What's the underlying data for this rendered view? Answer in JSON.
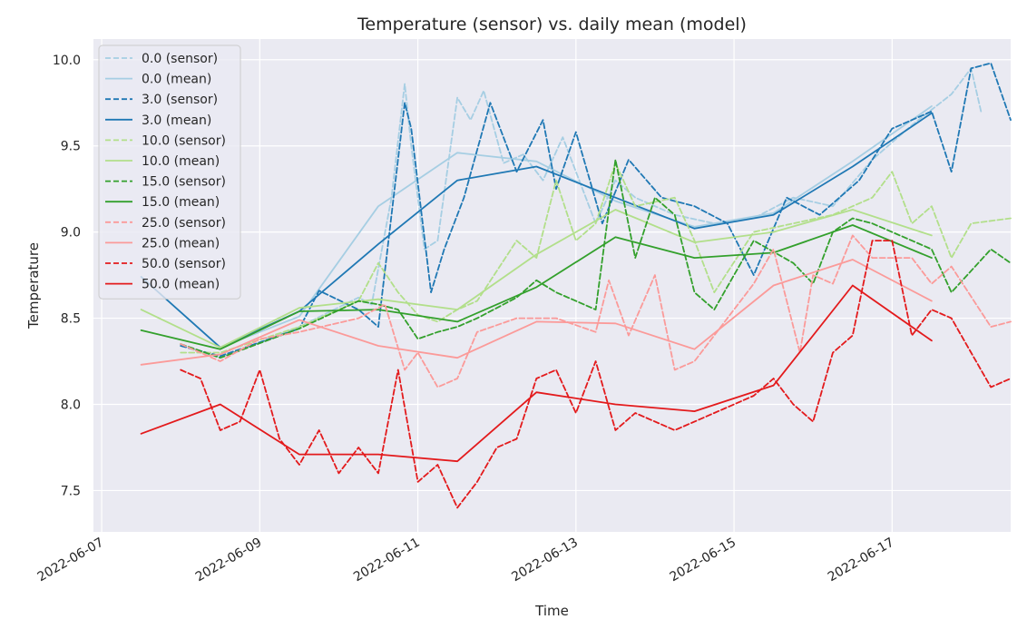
{
  "chart_data": {
    "type": "line",
    "title": "Temperature (sensor) vs. daily mean (model)",
    "xlabel": "Time",
    "ylabel": "Temperature",
    "xlim": [
      "2022-06-06T21:30",
      "2022-06-18T12:00"
    ],
    "ylim": [
      7.26,
      10.12
    ],
    "x_ticks": [
      "2022-06-07",
      "2022-06-09",
      "2022-06-11",
      "2022-06-13",
      "2022-06-15",
      "2022-06-17"
    ],
    "y_ticks": [
      7.5,
      8.0,
      8.5,
      9.0,
      9.5,
      10.0
    ],
    "grid": true,
    "legend_position": "top-left",
    "series": [
      {
        "name": "0.0 (sensor)",
        "color": "#a6cee3",
        "style": "dashed",
        "x": [
          "2022-06-08T00:00",
          "2022-06-08T12:00",
          "2022-06-09T12:00",
          "2022-06-10T06:00",
          "2022-06-10T10:00",
          "2022-06-10T16:00",
          "2022-06-10T20:00",
          "2022-06-10T22:00",
          "2022-06-11T02:00",
          "2022-06-11T06:00",
          "2022-06-11T12:00",
          "2022-06-11T16:00",
          "2022-06-11T20:00",
          "2022-06-12T02:00",
          "2022-06-12T08:00",
          "2022-06-12T14:00",
          "2022-06-12T20:00",
          "2022-06-13T06:00",
          "2022-06-13T12:00",
          "2022-06-13T18:00",
          "2022-06-14T06:00",
          "2022-06-14T18:00",
          "2022-06-15T06:00",
          "2022-06-15T18:00",
          "2022-06-16T06:00",
          "2022-06-16T18:00",
          "2022-06-17T06:00",
          "2022-06-17T18:00",
          "2022-06-18T00:00",
          "2022-06-18T03:00"
        ],
        "y": [
          8.34,
          8.27,
          8.45,
          8.62,
          8.58,
          9.2,
          9.86,
          9.5,
          8.9,
          8.95,
          9.78,
          9.65,
          9.82,
          9.4,
          9.45,
          9.3,
          9.55,
          9.05,
          9.3,
          9.2,
          9.1,
          9.05,
          9.08,
          9.2,
          9.15,
          9.42,
          9.62,
          9.8,
          9.95,
          9.7
        ]
      },
      {
        "name": "0.0 (mean)",
        "color": "#a6cee3",
        "style": "solid",
        "x": [
          "2022-06-07T12:00",
          "2022-06-08T12:00",
          "2022-06-09T12:00",
          "2022-06-10T12:00",
          "2022-06-11T12:00",
          "2022-06-12T12:00",
          "2022-06-13T12:00",
          "2022-06-14T12:00",
          "2022-06-15T12:00",
          "2022-06-16T12:00",
          "2022-06-17T12:00"
        ],
        "y": [
          8.74,
          8.33,
          8.51,
          9.15,
          9.46,
          9.41,
          9.18,
          9.03,
          9.11,
          9.41,
          9.73
        ]
      },
      {
        "name": "3.0 (sensor)",
        "color": "#1f78b4",
        "style": "dashed",
        "x": [
          "2022-06-08T00:00",
          "2022-06-08T12:00",
          "2022-06-09T12:00",
          "2022-06-09T18:00",
          "2022-06-10T06:00",
          "2022-06-10T12:00",
          "2022-06-10T20:00",
          "2022-06-10T22:00",
          "2022-06-11T04:00",
          "2022-06-11T08:00",
          "2022-06-11T14:00",
          "2022-06-11T22:00",
          "2022-06-12T06:00",
          "2022-06-12T14:00",
          "2022-06-12T18:00",
          "2022-06-13T00:00",
          "2022-06-13T08:00",
          "2022-06-13T16:00",
          "2022-06-14T02:00",
          "2022-06-14T12:00",
          "2022-06-14T22:00",
          "2022-06-15T06:00",
          "2022-06-15T16:00",
          "2022-06-16T02:00",
          "2022-06-16T14:00",
          "2022-06-17T00:00",
          "2022-06-17T12:00",
          "2022-06-17T18:00",
          "2022-06-18T00:00",
          "2022-06-18T06:00",
          "2022-06-18T12:00"
        ],
        "y": [
          8.34,
          8.28,
          8.44,
          8.66,
          8.55,
          8.45,
          9.75,
          9.6,
          8.65,
          8.9,
          9.2,
          9.75,
          9.35,
          9.65,
          9.25,
          9.58,
          9.05,
          9.42,
          9.2,
          9.15,
          9.05,
          8.75,
          9.2,
          9.1,
          9.3,
          9.6,
          9.7,
          9.35,
          9.95,
          9.98,
          9.65
        ]
      },
      {
        "name": "3.0 (mean)",
        "color": "#1f78b4",
        "style": "solid",
        "x": [
          "2022-06-07T12:00",
          "2022-06-08T12:00",
          "2022-06-09T12:00",
          "2022-06-10T12:00",
          "2022-06-11T12:00",
          "2022-06-12T12:00",
          "2022-06-13T12:00",
          "2022-06-14T12:00",
          "2022-06-15T12:00",
          "2022-06-16T12:00",
          "2022-06-17T12:00"
        ],
        "y": [
          8.74,
          8.33,
          8.54,
          8.93,
          9.3,
          9.38,
          9.2,
          9.02,
          9.1,
          9.38,
          9.69
        ]
      },
      {
        "name": "10.0 (sensor)",
        "color": "#b2df8a",
        "style": "dashed",
        "x": [
          "2022-06-08T00:00",
          "2022-06-08T12:00",
          "2022-06-09T12:00",
          "2022-06-10T06:00",
          "2022-06-10T12:00",
          "2022-06-10T18:00",
          "2022-06-11T00:00",
          "2022-06-11T06:00",
          "2022-06-11T12:00",
          "2022-06-11T18:00",
          "2022-06-12T06:00",
          "2022-06-12T12:00",
          "2022-06-12T18:00",
          "2022-06-13T00:00",
          "2022-06-13T06:00",
          "2022-06-13T12:00",
          "2022-06-13T18:00",
          "2022-06-14T06:00",
          "2022-06-14T12:00",
          "2022-06-14T18:00",
          "2022-06-15T06:00",
          "2022-06-15T18:00",
          "2022-06-16T06:00",
          "2022-06-16T12:00",
          "2022-06-16T18:00",
          "2022-06-17T00:00",
          "2022-06-17T06:00",
          "2022-06-17T12:00",
          "2022-06-17T18:00",
          "2022-06-18T00:00",
          "2022-06-18T12:00"
        ],
        "y": [
          8.3,
          8.3,
          8.45,
          8.6,
          8.82,
          8.65,
          8.52,
          8.48,
          8.55,
          8.6,
          8.95,
          8.85,
          9.3,
          8.95,
          9.05,
          9.4,
          9.15,
          9.2,
          8.95,
          8.65,
          9.0,
          9.05,
          9.1,
          9.15,
          9.2,
          9.35,
          9.05,
          9.15,
          8.85,
          9.05,
          9.08
        ]
      },
      {
        "name": "10.0 (mean)",
        "color": "#b2df8a",
        "style": "solid",
        "x": [
          "2022-06-07T12:00",
          "2022-06-08T12:00",
          "2022-06-09T12:00",
          "2022-06-10T12:00",
          "2022-06-11T12:00",
          "2022-06-12T12:00",
          "2022-06-13T12:00",
          "2022-06-14T12:00",
          "2022-06-15T12:00",
          "2022-06-16T12:00",
          "2022-06-17T12:00"
        ],
        "y": [
          8.55,
          8.33,
          8.56,
          8.61,
          8.55,
          8.87,
          9.13,
          8.94,
          9.0,
          9.13,
          8.98
        ]
      },
      {
        "name": "15.0 (sensor)",
        "color": "#33a02c",
        "style": "dashed",
        "x": [
          "2022-06-08T00:00",
          "2022-06-08T12:00",
          "2022-06-09T12:00",
          "2022-06-10T06:00",
          "2022-06-10T12:00",
          "2022-06-10T18:00",
          "2022-06-11T00:00",
          "2022-06-11T06:00",
          "2022-06-11T12:00",
          "2022-06-11T18:00",
          "2022-06-12T06:00",
          "2022-06-12T12:00",
          "2022-06-12T18:00",
          "2022-06-13T00:00",
          "2022-06-13T06:00",
          "2022-06-13T12:00",
          "2022-06-13T18:00",
          "2022-06-14T00:00",
          "2022-06-14T06:00",
          "2022-06-14T12:00",
          "2022-06-14T18:00",
          "2022-06-15T06:00",
          "2022-06-15T18:00",
          "2022-06-16T00:00",
          "2022-06-16T06:00",
          "2022-06-16T12:00",
          "2022-06-16T18:00",
          "2022-06-17T06:00",
          "2022-06-17T12:00",
          "2022-06-17T18:00",
          "2022-06-18T06:00",
          "2022-06-18T12:00"
        ],
        "y": [
          8.35,
          8.27,
          8.44,
          8.6,
          8.58,
          8.55,
          8.38,
          8.42,
          8.45,
          8.5,
          8.62,
          8.72,
          8.65,
          8.6,
          8.55,
          9.42,
          8.85,
          9.2,
          9.1,
          8.65,
          8.55,
          8.95,
          8.82,
          8.7,
          9.0,
          9.08,
          9.05,
          8.95,
          8.9,
          8.65,
          8.9,
          8.82
        ]
      },
      {
        "name": "15.0 (mean)",
        "color": "#33a02c",
        "style": "solid",
        "x": [
          "2022-06-07T12:00",
          "2022-06-08T12:00",
          "2022-06-09T12:00",
          "2022-06-10T12:00",
          "2022-06-11T12:00",
          "2022-06-12T12:00",
          "2022-06-13T12:00",
          "2022-06-14T12:00",
          "2022-06-15T12:00",
          "2022-06-16T12:00",
          "2022-06-17T12:00"
        ],
        "y": [
          8.43,
          8.32,
          8.54,
          8.55,
          8.48,
          8.68,
          8.97,
          8.85,
          8.88,
          9.04,
          8.85
        ]
      },
      {
        "name": "25.0 (sensor)",
        "color": "#fb9a99",
        "style": "dashed",
        "x": [
          "2022-06-08T00:00",
          "2022-06-08T12:00",
          "2022-06-09T00:00",
          "2022-06-09T12:00",
          "2022-06-10T06:00",
          "2022-06-10T14:00",
          "2022-06-10T20:00",
          "2022-06-11T00:00",
          "2022-06-11T06:00",
          "2022-06-11T12:00",
          "2022-06-11T18:00",
          "2022-06-12T06:00",
          "2022-06-12T18:00",
          "2022-06-13T06:00",
          "2022-06-13T10:00",
          "2022-06-13T16:00",
          "2022-06-14T00:00",
          "2022-06-14T06:00",
          "2022-06-14T12:00",
          "2022-06-14T20:00",
          "2022-06-15T06:00",
          "2022-06-15T12:00",
          "2022-06-15T20:00",
          "2022-06-16T00:00",
          "2022-06-16T06:00",
          "2022-06-16T12:00",
          "2022-06-16T18:00",
          "2022-06-17T06:00",
          "2022-06-17T12:00",
          "2022-06-17T18:00",
          "2022-06-18T06:00",
          "2022-06-18T12:00"
        ],
        "y": [
          8.35,
          8.25,
          8.38,
          8.42,
          8.5,
          8.58,
          8.2,
          8.3,
          8.1,
          8.15,
          8.42,
          8.5,
          8.5,
          8.42,
          8.72,
          8.4,
          8.75,
          8.2,
          8.25,
          8.45,
          8.7,
          8.9,
          8.3,
          8.75,
          8.7,
          8.98,
          8.85,
          8.85,
          8.7,
          8.8,
          8.45,
          8.48
        ]
      },
      {
        "name": "25.0 (mean)",
        "color": "#fb9a99",
        "style": "solid",
        "x": [
          "2022-06-07T12:00",
          "2022-06-08T12:00",
          "2022-06-09T12:00",
          "2022-06-10T12:00",
          "2022-06-11T12:00",
          "2022-06-12T12:00",
          "2022-06-13T12:00",
          "2022-06-14T12:00",
          "2022-06-15T12:00",
          "2022-06-16T12:00",
          "2022-06-17T12:00"
        ],
        "y": [
          8.23,
          8.29,
          8.49,
          8.34,
          8.27,
          8.48,
          8.47,
          8.32,
          8.69,
          8.84,
          8.6
        ]
      },
      {
        "name": "50.0 (sensor)",
        "color": "#e31a1c",
        "style": "dashed",
        "x": [
          "2022-06-08T00:00",
          "2022-06-08T06:00",
          "2022-06-08T12:00",
          "2022-06-08T18:00",
          "2022-06-09T00:00",
          "2022-06-09T06:00",
          "2022-06-09T12:00",
          "2022-06-09T18:00",
          "2022-06-10T00:00",
          "2022-06-10T06:00",
          "2022-06-10T12:00",
          "2022-06-10T18:00",
          "2022-06-11T00:00",
          "2022-06-11T06:00",
          "2022-06-11T12:00",
          "2022-06-11T18:00",
          "2022-06-12T00:00",
          "2022-06-12T06:00",
          "2022-06-12T12:00",
          "2022-06-12T18:00",
          "2022-06-13T00:00",
          "2022-06-13T06:00",
          "2022-06-13T12:00",
          "2022-06-13T18:00",
          "2022-06-14T06:00",
          "2022-06-14T18:00",
          "2022-06-15T06:00",
          "2022-06-15T12:00",
          "2022-06-15T18:00",
          "2022-06-16T00:00",
          "2022-06-16T06:00",
          "2022-06-16T12:00",
          "2022-06-16T18:00",
          "2022-06-17T00:00",
          "2022-06-17T06:00",
          "2022-06-17T12:00",
          "2022-06-17T18:00",
          "2022-06-18T00:00",
          "2022-06-18T06:00",
          "2022-06-18T12:00"
        ],
        "y": [
          8.2,
          8.15,
          7.85,
          7.9,
          8.2,
          7.8,
          7.65,
          7.85,
          7.6,
          7.75,
          7.6,
          8.2,
          7.55,
          7.65,
          7.4,
          7.55,
          7.75,
          7.8,
          8.15,
          8.2,
          7.95,
          8.25,
          7.85,
          7.95,
          7.85,
          7.95,
          8.05,
          8.15,
          8.0,
          7.9,
          8.3,
          8.4,
          8.95,
          8.95,
          8.4,
          8.55,
          8.5,
          8.3,
          8.1,
          8.15
        ]
      },
      {
        "name": "50.0 (mean)",
        "color": "#e31a1c",
        "style": "solid",
        "x": [
          "2022-06-07T12:00",
          "2022-06-08T12:00",
          "2022-06-09T12:00",
          "2022-06-10T12:00",
          "2022-06-11T12:00",
          "2022-06-12T12:00",
          "2022-06-13T12:00",
          "2022-06-14T12:00",
          "2022-06-15T12:00",
          "2022-06-16T12:00",
          "2022-06-17T12:00"
        ],
        "y": [
          7.83,
          8.0,
          7.71,
          7.71,
          7.67,
          8.07,
          8.0,
          7.96,
          8.11,
          8.69,
          8.37
        ]
      }
    ]
  }
}
